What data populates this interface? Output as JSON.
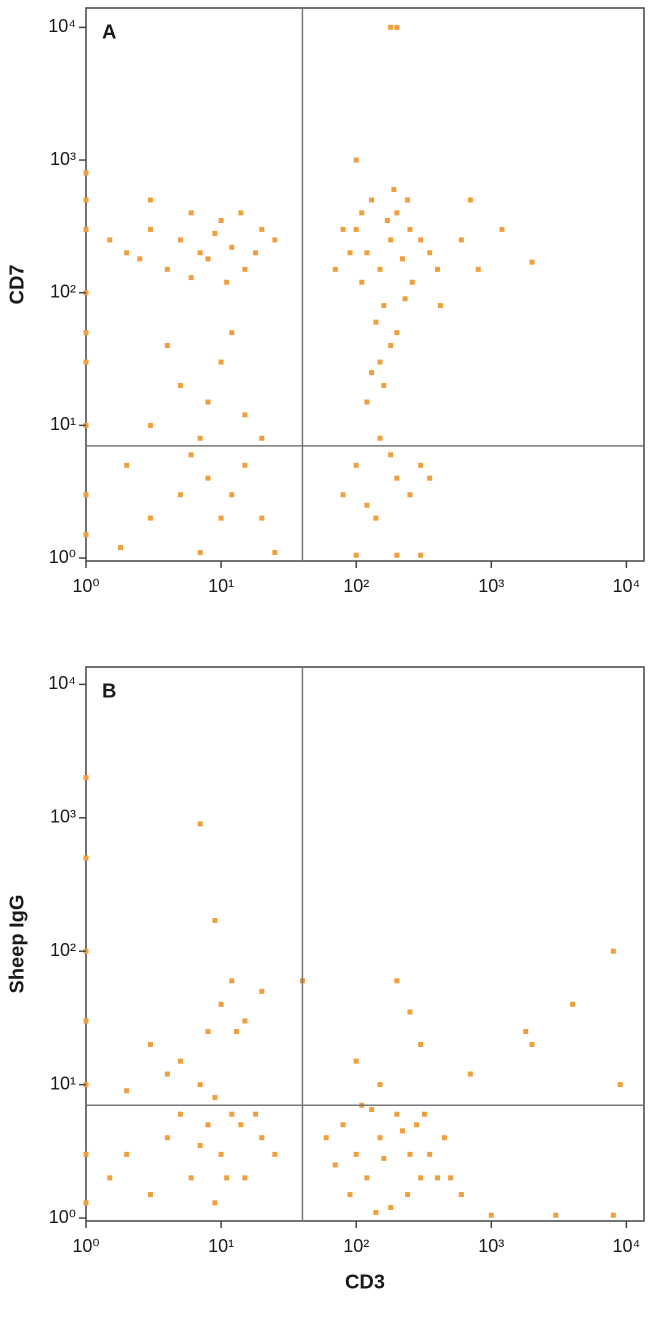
{
  "chart_data": [
    {
      "type": "scatter",
      "panel_label": "A",
      "y_label": "CD7",
      "log_x": true,
      "log_y": true,
      "color": "#ef9f3d",
      "gate_x": 40,
      "gate_y": 7,
      "xlim": [
        1,
        13500
      ],
      "ylim": [
        0.95,
        14000
      ],
      "xticks": [
        {
          "value": 1,
          "label": "10⁰"
        },
        {
          "value": 10,
          "label": "10¹"
        },
        {
          "value": 100,
          "label": "10²"
        },
        {
          "value": 1000,
          "label": "10³"
        },
        {
          "value": 10000,
          "label": "10⁴"
        }
      ],
      "yticks": [
        {
          "value": 1,
          "label": "10⁰"
        },
        {
          "value": 10,
          "label": "10¹"
        },
        {
          "value": 100,
          "label": "10²"
        },
        {
          "value": 1000,
          "label": "10³"
        },
        {
          "value": 10000,
          "label": "10⁴"
        }
      ],
      "x": [
        100,
        120,
        150,
        180,
        200,
        130,
        160,
        140,
        110,
        250,
        220,
        170,
        90,
        300,
        260,
        200,
        150,
        130,
        180,
        240,
        110,
        80,
        350,
        400,
        420,
        70,
        190,
        230,
        160,
        120,
        150,
        100,
        200,
        250,
        120,
        180,
        300,
        80,
        140,
        350,
        2,
        3,
        5,
        8,
        10,
        12,
        15,
        20,
        4,
        6,
        7,
        9,
        1.5,
        2.5,
        18,
        25,
        3,
        11,
        14,
        6,
        5,
        8,
        10,
        3,
        15,
        20,
        7,
        4,
        12,
        2,
        5,
        8,
        10,
        15,
        3,
        6,
        12,
        20,
        1.8,
        7,
        25,
        180,
        200,
        700,
        1200,
        2000,
        600,
        800,
        100,
        1,
        1,
        1,
        1,
        1,
        1,
        1,
        1,
        1,
        100,
        200,
        300
      ],
      "values": [
        300,
        200,
        150,
        250,
        400,
        500,
        80,
        60,
        120,
        300,
        180,
        350,
        200,
        250,
        120,
        50,
        30,
        25,
        40,
        500,
        400,
        300,
        200,
        150,
        80,
        150,
        600,
        90,
        20,
        15,
        8,
        5,
        4,
        3,
        2.5,
        6,
        5,
        3,
        2,
        4,
        200,
        300,
        250,
        180,
        350,
        220,
        150,
        300,
        150,
        400,
        200,
        280,
        250,
        180,
        200,
        250,
        500,
        120,
        400,
        130,
        20,
        15,
        30,
        10,
        12,
        8,
        8,
        40,
        50,
        5,
        3,
        4,
        2,
        5,
        2,
        6,
        3,
        2,
        1.2,
        1.1,
        1.1,
        10000,
        10000,
        500,
        300,
        170,
        250,
        150,
        1000,
        800,
        300,
        100,
        30,
        10,
        3,
        1.5,
        500,
        50,
        1.05,
        1.05,
        1.05
      ]
    },
    {
      "type": "scatter",
      "panel_label": "B",
      "y_label": "Sheep IgG",
      "x_label": "CD3",
      "log_x": true,
      "log_y": true,
      "color": "#ef9f3d",
      "gate_x": 40,
      "gate_y": 7,
      "xlim": [
        1,
        13500
      ],
      "ylim": [
        0.95,
        13500
      ],
      "xticks": [
        {
          "value": 1,
          "label": "10⁰"
        },
        {
          "value": 10,
          "label": "10¹"
        },
        {
          "value": 100,
          "label": "10²"
        },
        {
          "value": 1000,
          "label": "10³"
        },
        {
          "value": 10000,
          "label": "10⁴"
        }
      ],
      "yticks": [
        {
          "value": 1,
          "label": "10⁰"
        },
        {
          "value": 10,
          "label": "10¹"
        },
        {
          "value": 100,
          "label": "10²"
        },
        {
          "value": 1000,
          "label": "10³"
        },
        {
          "value": 10000,
          "label": "10⁴"
        }
      ],
      "x": [
        80,
        100,
        120,
        150,
        200,
        250,
        300,
        90,
        130,
        180,
        220,
        350,
        400,
        70,
        110,
        160,
        280,
        60,
        240,
        320,
        140,
        500,
        600,
        450,
        2,
        4,
        6,
        8,
        10,
        12,
        15,
        20,
        3,
        5,
        7,
        9,
        14,
        25,
        1.5,
        11,
        18,
        5,
        8,
        10,
        12,
        15,
        3,
        7,
        20,
        4,
        13,
        9,
        2,
        200,
        300,
        250,
        100,
        40,
        150,
        1800,
        2000,
        4000,
        8000,
        9000,
        700,
        7,
        9,
        1,
        1,
        1,
        1,
        1,
        1,
        1,
        1000,
        3000,
        8000
      ],
      "values": [
        5,
        3,
        2,
        4,
        6,
        3,
        2,
        1.5,
        6.5,
        1.2,
        4.5,
        3,
        2,
        2.5,
        7,
        2.8,
        5,
        4,
        1.5,
        6,
        1.1,
        2,
        1.5,
        4,
        3,
        4,
        2,
        5,
        3,
        6,
        2,
        4,
        1.5,
        6,
        3.5,
        1.3,
        5,
        3,
        2,
        2,
        6,
        15,
        25,
        40,
        60,
        30,
        20,
        10,
        50,
        12,
        25,
        8,
        9,
        60,
        20,
        35,
        15,
        60,
        10,
        25,
        20,
        40,
        100,
        10,
        12,
        900,
        170,
        2000,
        500,
        100,
        30,
        10,
        3,
        1.3,
        1.05,
        1.05,
        1.05
      ]
    }
  ]
}
